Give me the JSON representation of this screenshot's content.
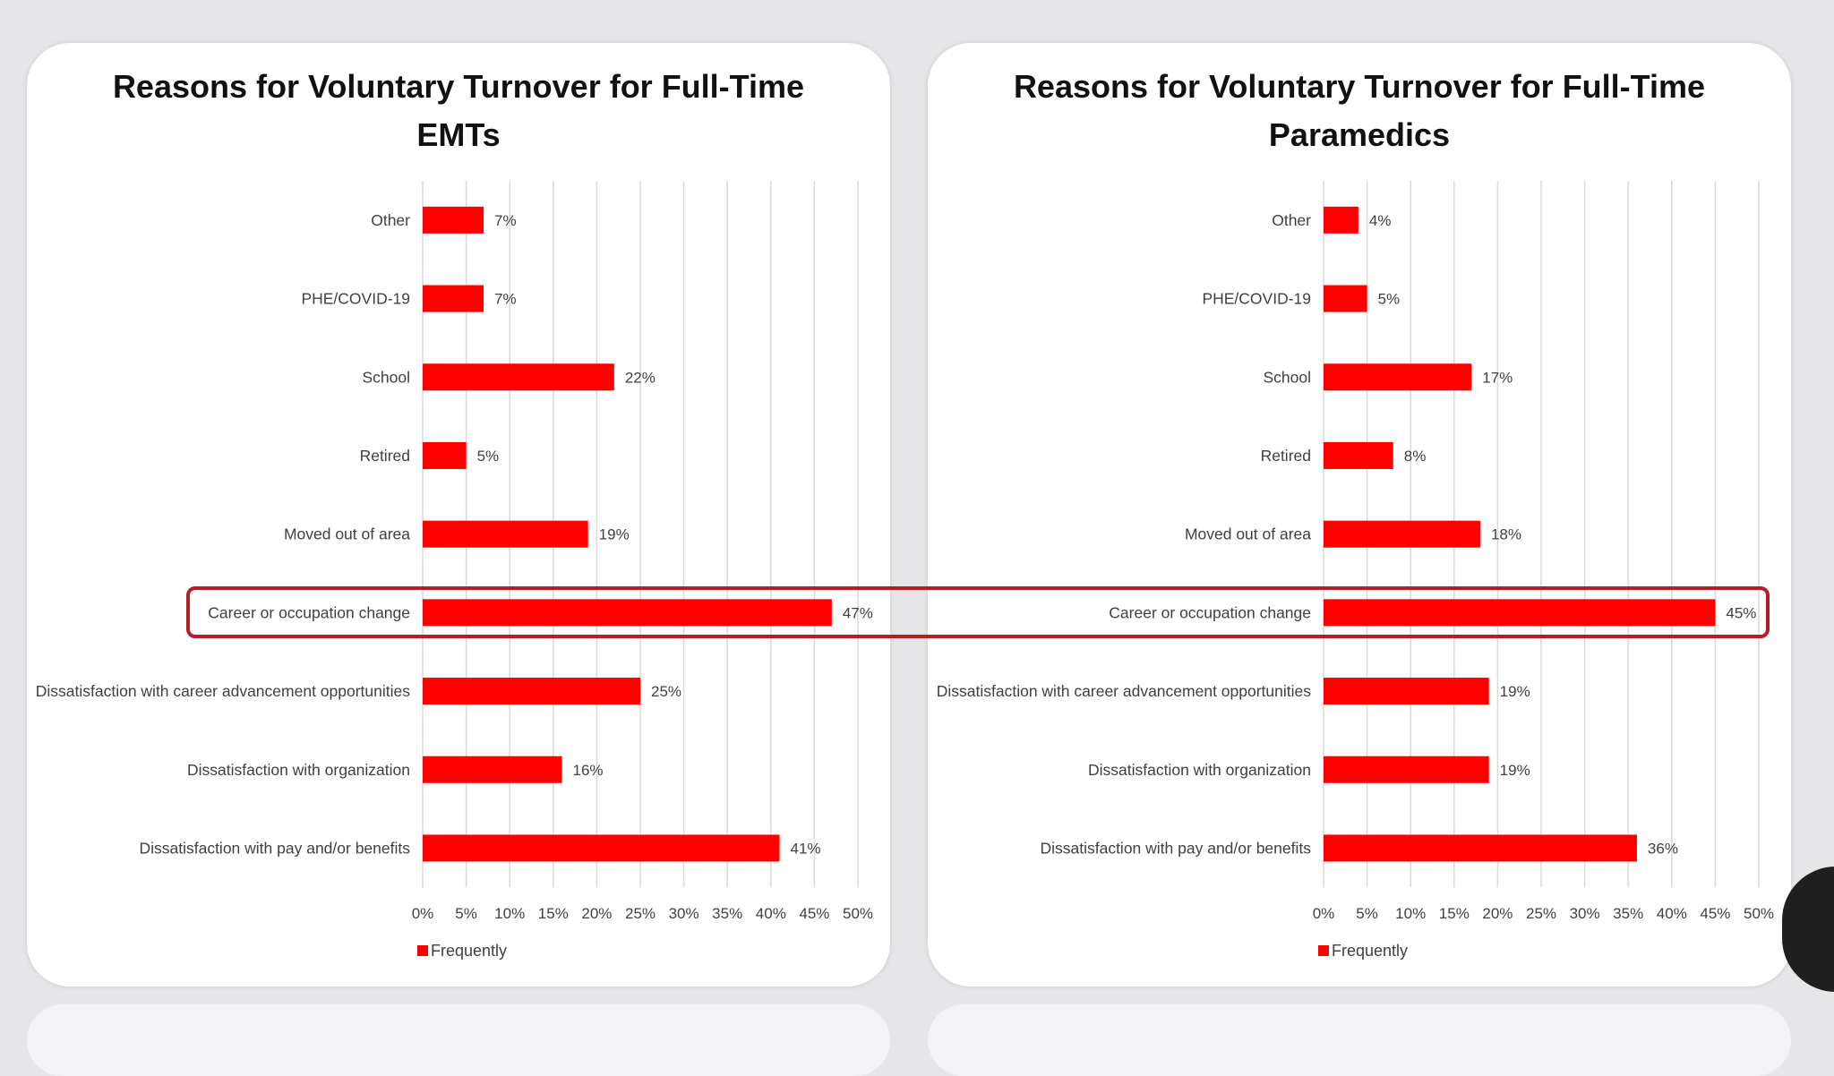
{
  "chart_data": [
    {
      "type": "bar",
      "orientation": "horizontal",
      "title_lines": [
        "Reasons for Voluntary Turnover for Full-Time",
        "EMTs"
      ],
      "categories": [
        "Other",
        "PHE/COVID-19",
        "School",
        "Retired",
        "Moved out of area",
        "Career or occupation change",
        "Dissatisfaction with career advancement opportunities",
        "Dissatisfaction with organization",
        "Dissatisfaction with pay and/or benefits"
      ],
      "series": [
        {
          "name": "Frequently",
          "values": [
            7,
            7,
            22,
            5,
            19,
            47,
            25,
            16,
            41
          ]
        }
      ],
      "value_labels": [
        "7%",
        "7%",
        "22%",
        "5%",
        "19%",
        "47%",
        "25%",
        "16%",
        "41%"
      ],
      "xlim": [
        0,
        50
      ],
      "xticks": [
        "0%",
        "5%",
        "10%",
        "15%",
        "20%",
        "25%",
        "30%",
        "35%",
        "40%",
        "45%",
        "50%"
      ],
      "legend": {
        "label": "Frequently",
        "position": "bottom-left"
      },
      "grid": true,
      "highlighted_category": "Career or occupation change"
    },
    {
      "type": "bar",
      "orientation": "horizontal",
      "title_lines": [
        "Reasons for Voluntary Turnover for Full-Time",
        "Paramedics"
      ],
      "categories": [
        "Other",
        "PHE/COVID-19",
        "School",
        "Retired",
        "Moved out of area",
        "Career or occupation change",
        "Dissatisfaction with career advancement opportunities",
        "Dissatisfaction with organization",
        "Dissatisfaction with pay and/or benefits"
      ],
      "series": [
        {
          "name": "Frequently",
          "values": [
            4,
            5,
            17,
            8,
            18,
            45,
            19,
            19,
            36
          ]
        }
      ],
      "value_labels": [
        "4%",
        "5%",
        "17%",
        "8%",
        "18%",
        "45%",
        "19%",
        "19%",
        "36%"
      ],
      "xlim": [
        0,
        50
      ],
      "xticks": [
        "0%",
        "5%",
        "10%",
        "15%",
        "20%",
        "25%",
        "30%",
        "35%",
        "40%",
        "45%",
        "50%"
      ],
      "legend": {
        "label": "Frequently",
        "position": "bottom-left"
      },
      "grid": true,
      "highlighted_category": "Career or occupation change"
    }
  ],
  "colors": {
    "bar": "#ff0000",
    "grid": "#d9d9d9",
    "highlight": "#b41e24",
    "text": "#404040"
  }
}
